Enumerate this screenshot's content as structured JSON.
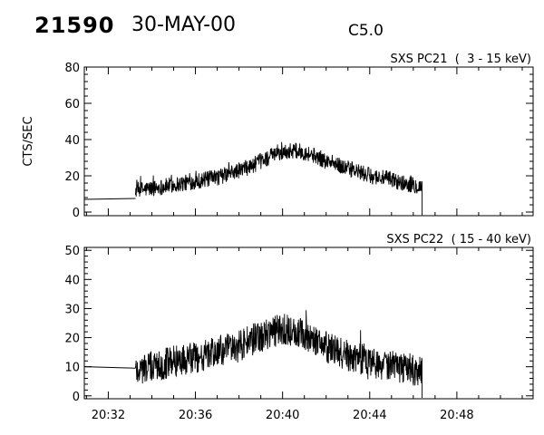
{
  "header": {
    "event_number": "21590",
    "date": "30-MAY-00",
    "goes_class": "C5.0"
  },
  "chart_data": [
    {
      "type": "line",
      "title": "SXS PC21  (  3 - 15 keV)",
      "ylabel": "CTS/SEC",
      "xlabel": "",
      "x_unit": "minutes since 20:30 UT",
      "xlim": [
        30.9,
        51.5
      ],
      "ylim": [
        -2,
        80
      ],
      "yticks": [
        0,
        20,
        40,
        60,
        80
      ],
      "xtick_labels": [],
      "flat_segment": {
        "x": [
          30.9,
          33.25
        ],
        "y": [
          7,
          7.5
        ]
      },
      "series": [
        {
          "x": [
            33.25,
            34.0,
            34.5,
            35.0,
            35.5,
            36.0,
            36.5,
            37.0,
            37.5,
            38.0,
            38.5,
            39.0,
            39.5,
            40.0,
            40.5,
            41.0,
            41.5,
            42.0,
            42.5,
            43.0,
            43.5,
            44.0,
            44.5,
            45.0,
            45.5,
            46.0,
            46.4
          ],
          "y": [
            12,
            13,
            14,
            15,
            16,
            17,
            18,
            19,
            21,
            23,
            25,
            28,
            31,
            33,
            34,
            33,
            31,
            28,
            26,
            24,
            22,
            20,
            19,
            18,
            16,
            15,
            14
          ],
          "noise": 4.5
        }
      ]
    },
    {
      "type": "line",
      "title": "SXS PC22  ( 15 - 40 keV)",
      "ylabel": "",
      "xlabel": "",
      "x_unit": "minutes since 20:30 UT",
      "xlim": [
        30.9,
        51.5
      ],
      "ylim": [
        -1,
        51
      ],
      "yticks": [
        0,
        10,
        20,
        30,
        40,
        50
      ],
      "xtick_labels": [
        "20:32",
        "20:36",
        "20:40",
        "20:44",
        "20:48"
      ],
      "xtick_values": [
        32,
        36,
        40,
        44,
        48
      ],
      "flat_segment": {
        "x": [
          30.9,
          33.25
        ],
        "y": [
          10,
          9.5
        ]
      },
      "series": [
        {
          "x": [
            33.25,
            34.0,
            34.5,
            35.0,
            35.5,
            36.0,
            36.5,
            37.0,
            37.5,
            38.0,
            38.5,
            39.0,
            39.5,
            40.0,
            40.5,
            41.0,
            41.5,
            42.0,
            42.5,
            43.0,
            43.5,
            44.0,
            44.5,
            45.0,
            45.5,
            46.0,
            46.4
          ],
          "y": [
            9,
            10,
            11,
            12,
            12.5,
            13,
            14,
            15,
            16,
            17,
            19,
            20,
            22,
            23,
            22,
            21,
            19,
            17,
            15,
            14,
            13,
            12,
            11,
            10,
            9.5,
            9,
            8
          ],
          "noise": 5.5
        }
      ]
    }
  ]
}
